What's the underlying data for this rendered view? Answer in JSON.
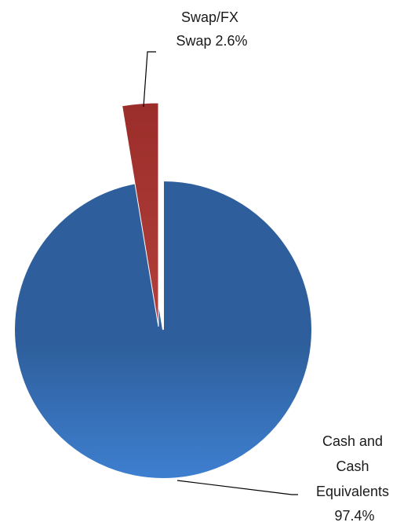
{
  "chart_data": {
    "type": "pie",
    "title": "",
    "exploded": true,
    "slices": [
      {
        "name": "Swap/FX Swap",
        "value": 2.6,
        "label_lines": [
          "Swap/FX",
          "Swap 2.6%"
        ],
        "color": "#9b2d2a",
        "color_light": "#b2403b"
      },
      {
        "name": "Cash and Cash Equivalents",
        "value": 97.4,
        "label_lines": [
          "Cash and",
          "Cash",
          "Equivalents",
          "97.4%"
        ],
        "color": "#2e5f9c",
        "color_light": "#3e7fd0"
      }
    ]
  }
}
